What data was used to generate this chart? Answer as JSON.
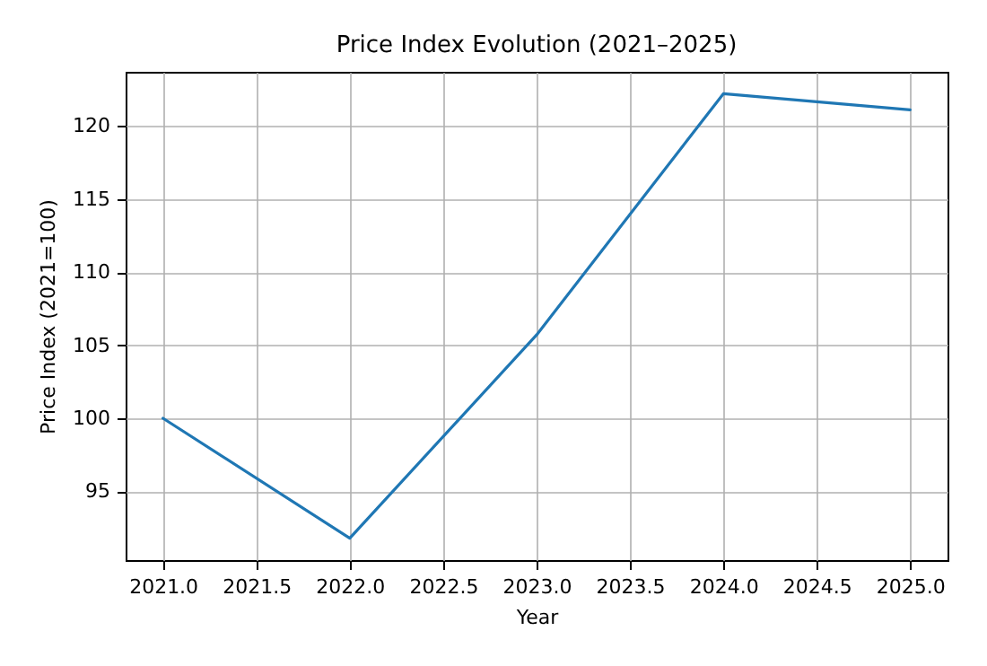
{
  "chart_data": {
    "type": "line",
    "title": "Price Index Evolution (2021–2025)",
    "xlabel": "Year",
    "ylabel": "Price Index (2021=100)",
    "x": [
      2021,
      2022,
      2023,
      2024,
      2025
    ],
    "series": [
      {
        "color": "#1f77b4",
        "values": [
          100,
          91.8,
          105.7,
          122.2,
          121.1
        ]
      }
    ],
    "xlim": [
      2020.8,
      2025.2
    ],
    "ylim": [
      90.3,
      123.7
    ],
    "xticks": [
      {
        "value": 2021,
        "label": "2021.0"
      },
      {
        "value": 2021.5,
        "label": "2021.5"
      },
      {
        "value": 2022,
        "label": "2022.0"
      },
      {
        "value": 2022.5,
        "label": "2022.5"
      },
      {
        "value": 2023,
        "label": "2023.0"
      },
      {
        "value": 2023.5,
        "label": "2023.5"
      },
      {
        "value": 2024,
        "label": "2024.0"
      },
      {
        "value": 2024.5,
        "label": "2024.5"
      },
      {
        "value": 2025,
        "label": "2025.0"
      }
    ],
    "yticks": [
      95,
      100,
      105,
      110,
      115,
      120
    ],
    "grid": true,
    "marker": "none",
    "line_style": "solid"
  }
}
